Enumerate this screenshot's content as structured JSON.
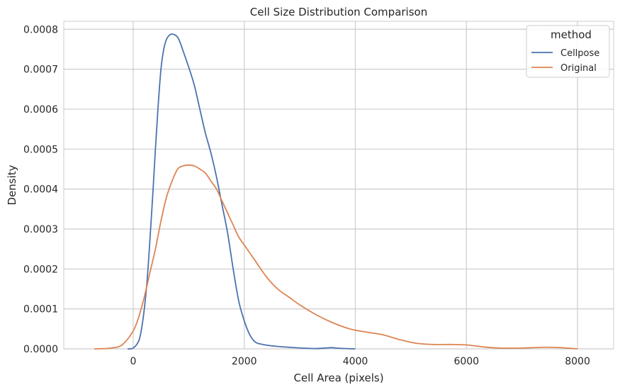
{
  "chart_data": {
    "type": "line",
    "title": "Cell Size Distribution Comparison",
    "xlabel": "Cell Area (pixels)",
    "ylabel": "Density",
    "xlim": [
      -1250,
      8650
    ],
    "ylim": [
      0,
      0.00082
    ],
    "xticks": [
      0,
      2000,
      4000,
      6000,
      8000
    ],
    "xtick_labels": [
      "0",
      "2000",
      "4000",
      "6000",
      "8000"
    ],
    "yticks": [
      0,
      0.0001,
      0.0002,
      0.0003,
      0.0004,
      0.0005,
      0.0006,
      0.0007,
      0.0008
    ],
    "ytick_labels": [
      "0.0000",
      "0.0001",
      "0.0002",
      "0.0003",
      "0.0004",
      "0.0005",
      "0.0006",
      "0.0007",
      "0.0008"
    ],
    "grid": true,
    "legend": {
      "title": "method",
      "placement": "top-right"
    },
    "series": [
      {
        "name": "Cellpose",
        "color": "#4c72b0",
        "points": [
          [
            -100,
            0
          ],
          [
            0,
            2e-06
          ],
          [
            100,
            2e-05
          ],
          [
            150,
            5e-05
          ],
          [
            200,
            0.0001
          ],
          [
            250,
            0.00017
          ],
          [
            300,
            0.00027
          ],
          [
            350,
            0.00038
          ],
          [
            400,
            0.0005
          ],
          [
            450,
            0.00061
          ],
          [
            500,
            0.0007
          ],
          [
            550,
            0.00075
          ],
          [
            600,
            0.000775
          ],
          [
            650,
            0.000785
          ],
          [
            700,
            0.000788
          ],
          [
            750,
            0.000786
          ],
          [
            800,
            0.00078
          ],
          [
            850,
            0.000765
          ],
          [
            900,
            0.000745
          ],
          [
            1000,
            0.000705
          ],
          [
            1100,
            0.00066
          ],
          [
            1200,
            0.0006
          ],
          [
            1300,
            0.00054
          ],
          [
            1400,
            0.00049
          ],
          [
            1500,
            0.00043
          ],
          [
            1600,
            0.00036
          ],
          [
            1700,
            0.00029
          ],
          [
            1800,
            0.0002
          ],
          [
            1900,
            0.00012
          ],
          [
            2000,
            7e-05
          ],
          [
            2100,
            3.5e-05
          ],
          [
            2200,
            1.7e-05
          ],
          [
            2300,
            1.2e-05
          ],
          [
            2500,
            7.5e-06
          ],
          [
            2800,
            4e-06
          ],
          [
            3100,
            1.5e-06
          ],
          [
            3300,
            8e-07
          ],
          [
            3500,
            2.5e-06
          ],
          [
            3600,
            3e-06
          ],
          [
            3700,
            1.5e-06
          ],
          [
            4000,
            0
          ]
        ]
      },
      {
        "name": "Original",
        "color": "#dd8452",
        "points": [
          [
            -700,
            0
          ],
          [
            -400,
            2e-06
          ],
          [
            -200,
            1e-05
          ],
          [
            0,
            4.5e-05
          ],
          [
            100,
            8e-05
          ],
          [
            200,
            0.00013
          ],
          [
            300,
            0.00019
          ],
          [
            400,
            0.00025
          ],
          [
            500,
            0.00032
          ],
          [
            600,
            0.00038
          ],
          [
            700,
            0.00042
          ],
          [
            800,
            0.00045
          ],
          [
            900,
            0.000458
          ],
          [
            1000,
            0.00046
          ],
          [
            1100,
            0.000458
          ],
          [
            1200,
            0.00045
          ],
          [
            1300,
            0.00044
          ],
          [
            1400,
            0.00042
          ],
          [
            1500,
            0.0004
          ],
          [
            1600,
            0.00037
          ],
          [
            1700,
            0.00034
          ],
          [
            1800,
            0.00031
          ],
          [
            1900,
            0.00028
          ],
          [
            2000,
            0.00026
          ],
          [
            2200,
            0.00022
          ],
          [
            2400,
            0.00018
          ],
          [
            2600,
            0.00015
          ],
          [
            2800,
            0.00013
          ],
          [
            3000,
            0.00011
          ],
          [
            3300,
            8.5e-05
          ],
          [
            3600,
            6.5e-05
          ],
          [
            3900,
            5e-05
          ],
          [
            4200,
            4.2e-05
          ],
          [
            4500,
            3.5e-05
          ],
          [
            4800,
            2.3e-05
          ],
          [
            5100,
            1.4e-05
          ],
          [
            5400,
            1.1e-05
          ],
          [
            5700,
            1.1e-05
          ],
          [
            6000,
            1e-05
          ],
          [
            6300,
            5e-06
          ],
          [
            6600,
            2e-06
          ],
          [
            7000,
            2e-06
          ],
          [
            7400,
            4e-06
          ],
          [
            7700,
            3e-06
          ],
          [
            8000,
            0
          ]
        ]
      }
    ]
  }
}
